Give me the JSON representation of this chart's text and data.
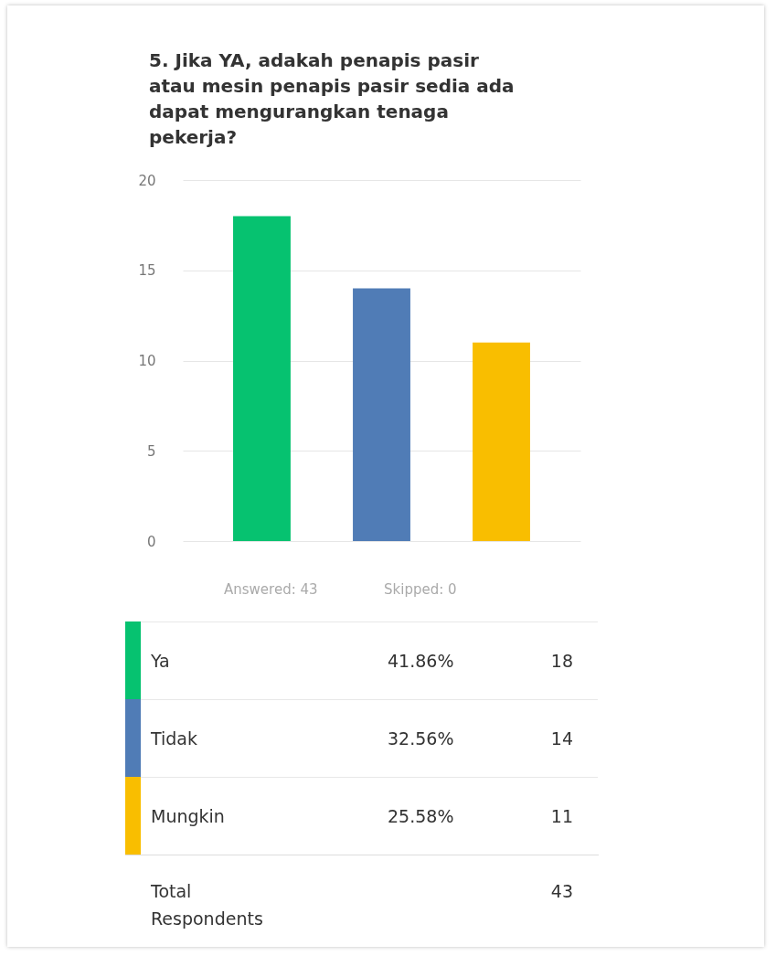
{
  "chart_data": {
    "type": "bar",
    "title": "5. Jika YA, adakah penapis pasir atau mesin penapis pasir sedia ada dapat mengurangkan tenaga pekerja?",
    "categories": [
      null,
      null,
      null
    ],
    "values": [
      18,
      14,
      11
    ],
    "colors": [
      "#06c270",
      "#507cb6",
      "#f9be00"
    ],
    "ylim": [
      0,
      20
    ],
    "yticks": [
      0,
      5,
      10,
      15,
      20
    ],
    "grid": "y",
    "tick_labels": "y",
    "annotations": [
      "Answered: 43",
      "Skipped: 0",
      "Ya",
      "41.86%",
      "18",
      "Tidak",
      "32.56%",
      "14",
      "Mungkin",
      "25.58%",
      "11",
      "Total Respondents",
      "43"
    ]
  }
}
